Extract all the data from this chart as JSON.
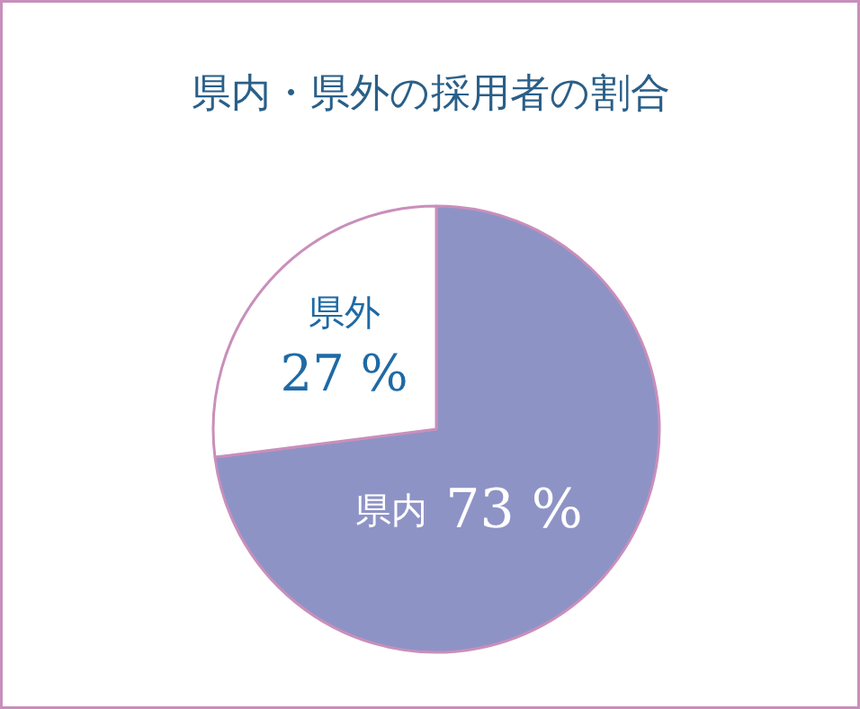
{
  "chart_data": {
    "type": "pie",
    "title": "県内・県外の採用者の割合",
    "categories": [
      "県内",
      "県外"
    ],
    "values": [
      73,
      27
    ],
    "colors": [
      "#8e93c6",
      "#ffffff"
    ],
    "value_labels": [
      "73 %",
      "27 %"
    ]
  }
}
